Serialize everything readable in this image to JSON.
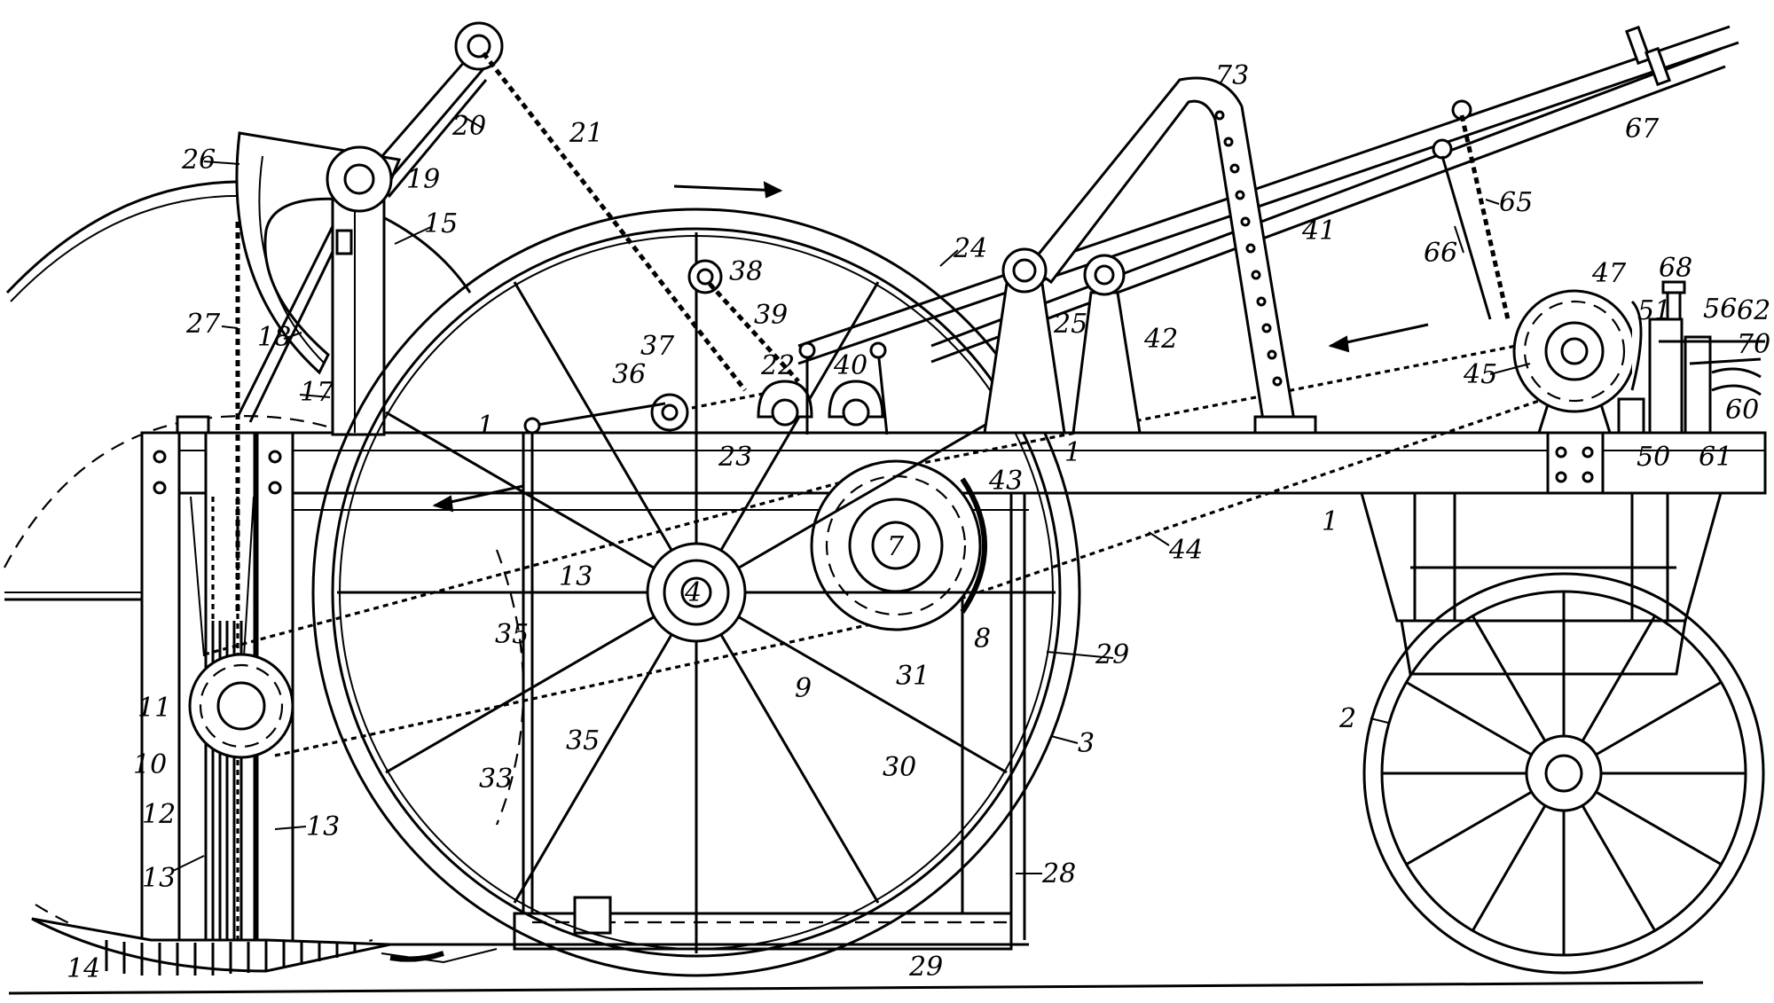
{
  "figure": {
    "kind": "patent-drawing",
    "subject": "wheeled machine with chain drives",
    "reference_numerals": [
      "1",
      "1",
      "1",
      "2",
      "3",
      "4",
      "7",
      "8",
      "9",
      "10",
      "11",
      "12",
      "13",
      "13",
      "13",
      "14",
      "15",
      "17",
      "18",
      "19",
      "20",
      "21",
      "22",
      "23",
      "24",
      "25",
      "26",
      "27",
      "28",
      "29",
      "29",
      "30",
      "31",
      "33",
      "35",
      "35",
      "36",
      "37",
      "38",
      "39",
      "40",
      "41",
      "42",
      "43",
      "44",
      "45",
      "47",
      "50",
      "51",
      "56",
      "60",
      "61",
      "62",
      "65",
      "66",
      "67",
      "68",
      "70",
      "73"
    ]
  }
}
